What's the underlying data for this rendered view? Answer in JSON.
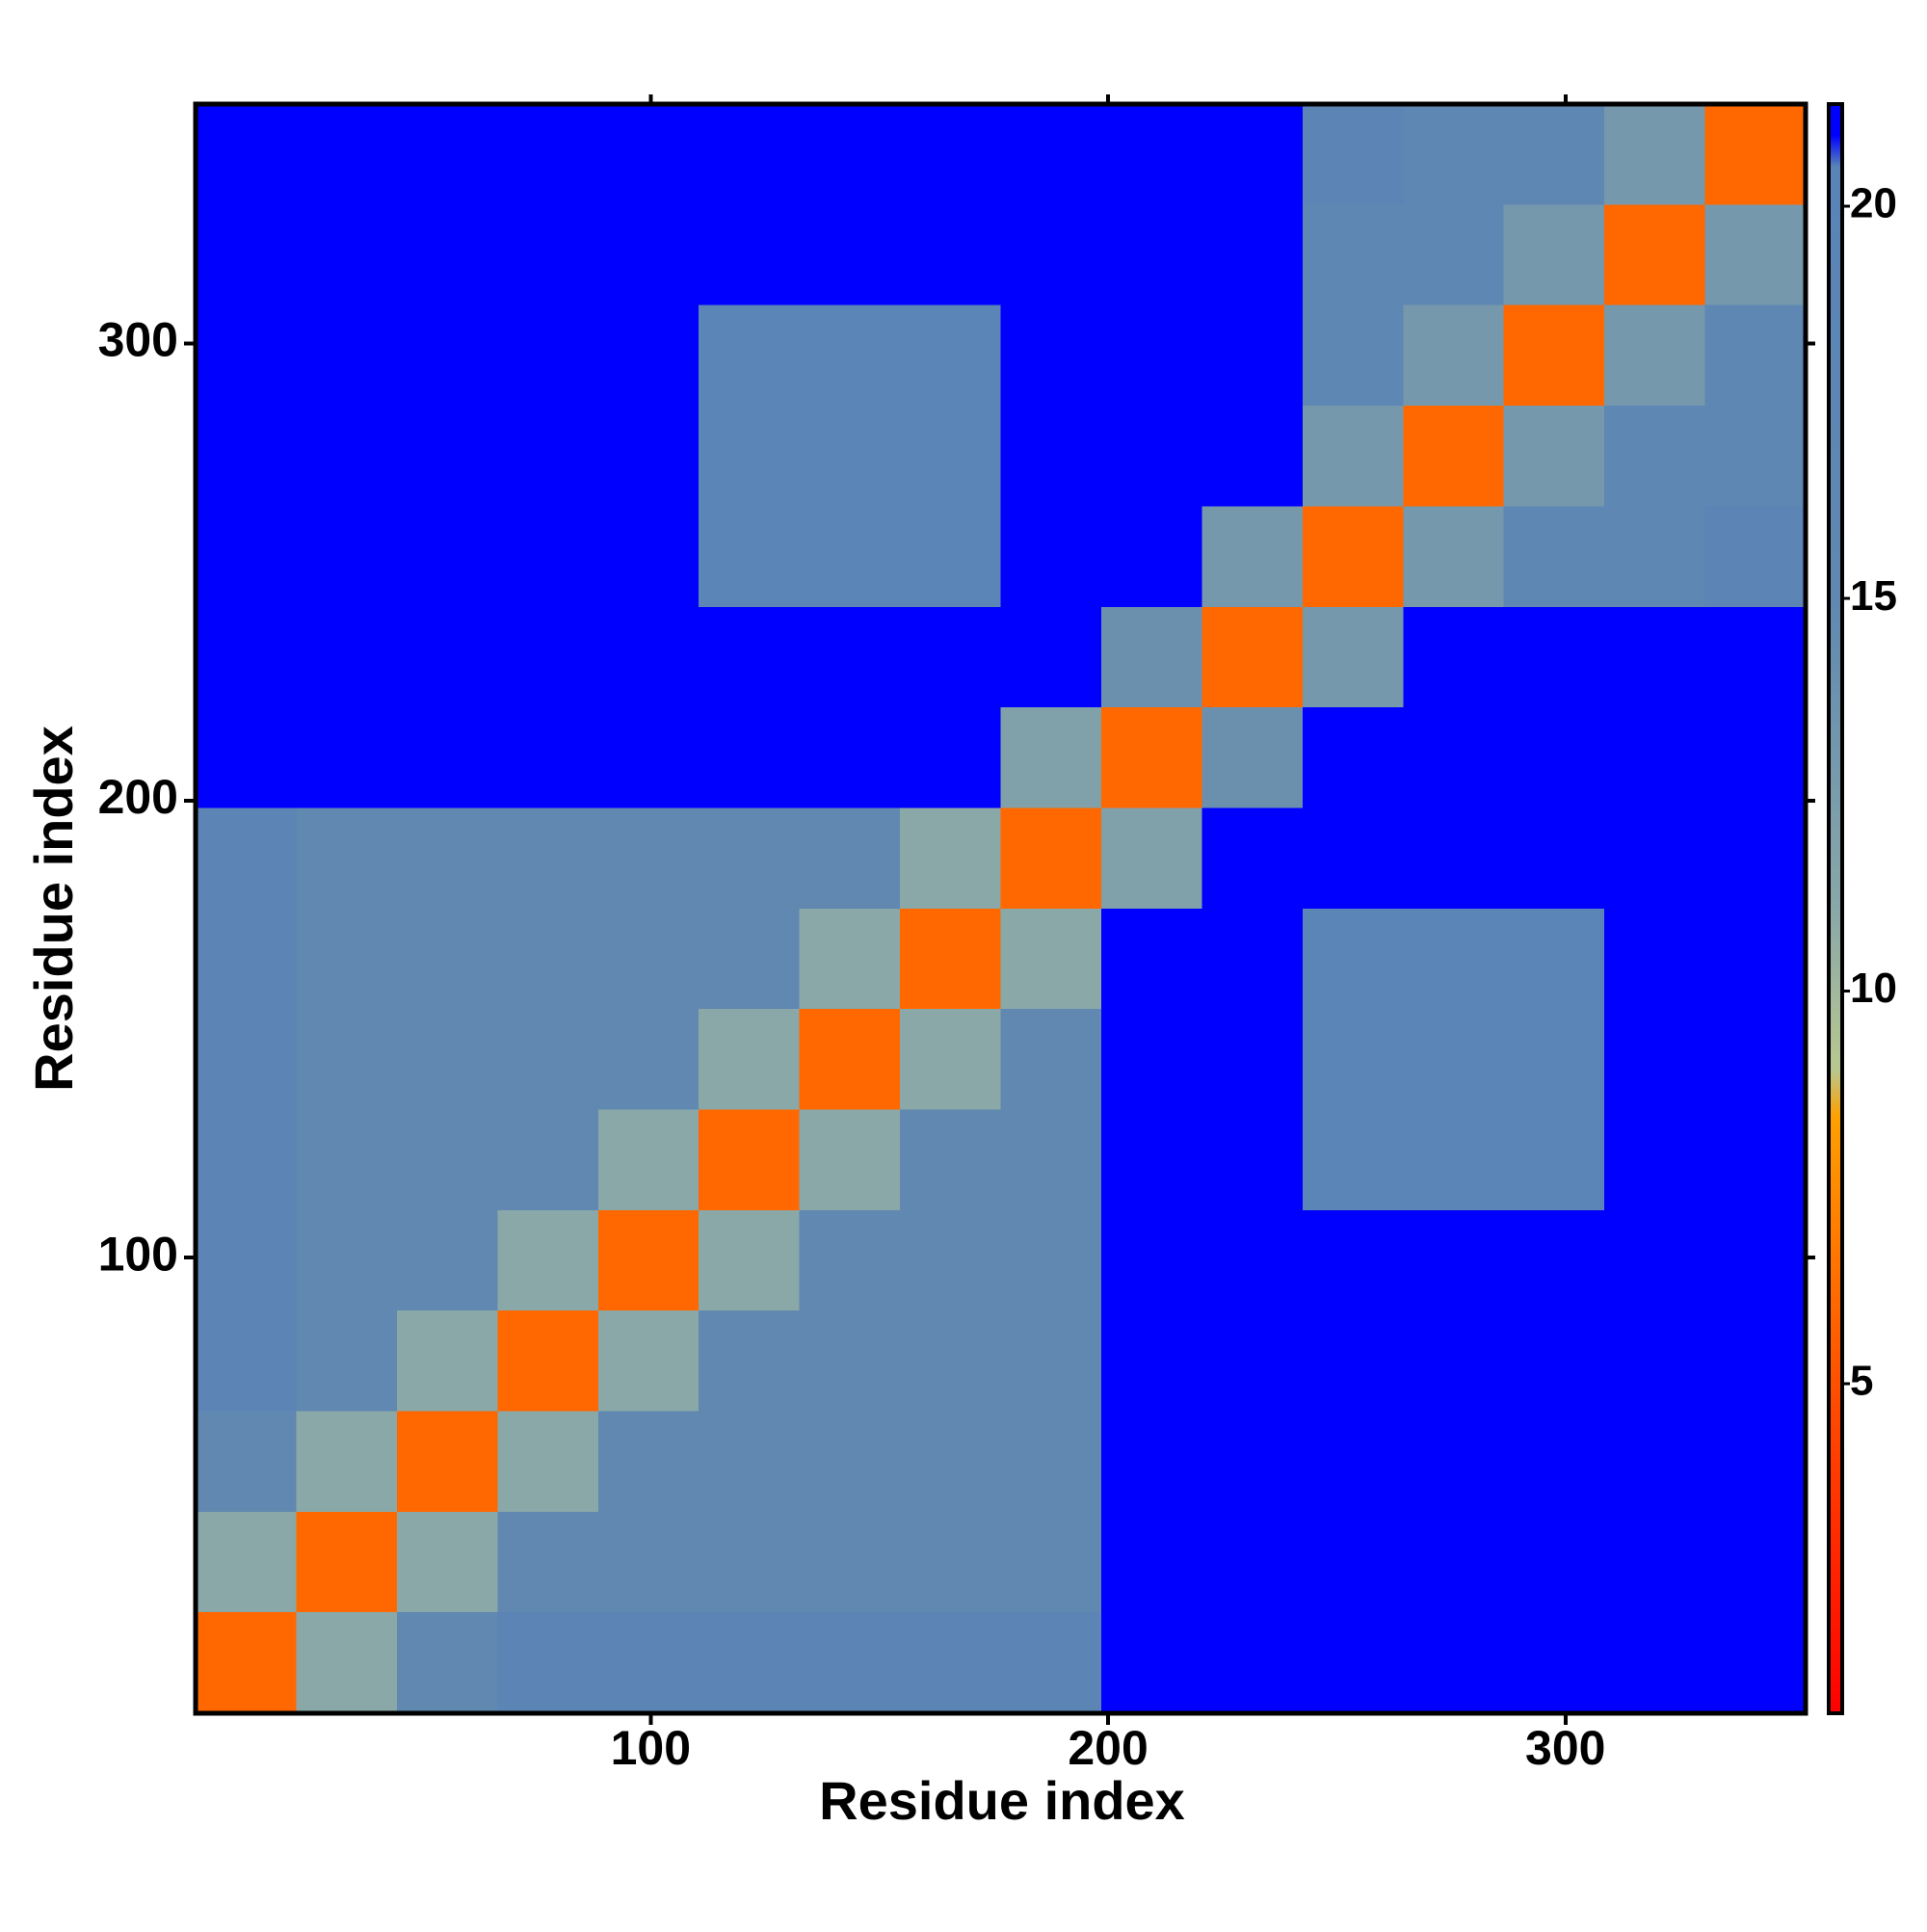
{
  "chart_data": {
    "type": "heatmap",
    "x_label": "Residue index",
    "y_label": "Residue index",
    "xbins": [
      0.5,
      22.5,
      44.5,
      66.5,
      88.5,
      110.5,
      132.5,
      154.5,
      176.5,
      198.5,
      220.5,
      242.5,
      264.5,
      286.5,
      308.5,
      330.5,
      352.5
    ],
    "ybins": [
      0.5,
      22.5,
      44.5,
      66.5,
      88.5,
      110.5,
      132.5,
      154.5,
      176.5,
      198.5,
      220.5,
      242.5,
      264.5,
      286.5,
      308.5,
      330.5,
      352.5
    ],
    "z": [
      [
        6,
        11,
        15,
        19,
        19,
        19,
        19,
        19,
        19,
        21,
        21,
        21,
        21,
        21,
        21,
        21
      ],
      [
        11,
        6,
        11,
        15,
        15,
        15,
        15,
        15,
        15,
        21,
        21,
        21,
        21,
        21,
        21,
        21
      ],
      [
        15,
        11,
        6,
        11,
        15,
        15,
        15,
        15,
        15,
        21,
        21,
        21,
        21,
        21,
        21,
        21
      ],
      [
        19,
        15,
        11,
        6,
        11,
        15,
        15,
        15,
        15,
        21,
        21,
        21,
        21,
        21,
        21,
        21
      ],
      [
        19,
        15,
        15,
        11,
        6,
        11,
        15,
        15,
        15,
        21,
        21,
        21,
        21,
        21,
        21,
        21
      ],
      [
        19,
        15,
        15,
        15,
        11,
        6,
        11,
        15,
        15,
        21,
        21,
        20,
        20,
        20,
        21,
        21
      ],
      [
        19,
        15,
        15,
        15,
        15,
        11,
        6,
        11,
        15,
        21,
        21,
        20,
        20,
        20,
        21,
        21
      ],
      [
        19,
        15,
        15,
        15,
        15,
        15,
        11,
        6,
        11,
        21,
        21,
        20,
        20,
        20,
        21,
        21
      ],
      [
        19,
        15,
        15,
        15,
        15,
        15,
        15,
        11,
        6,
        12,
        21,
        21,
        21,
        21,
        21,
        21
      ],
      [
        21,
        21,
        21,
        21,
        21,
        21,
        21,
        21,
        12,
        6,
        14,
        21,
        21,
        21,
        21,
        21
      ],
      [
        21,
        21,
        21,
        21,
        21,
        21,
        21,
        21,
        21,
        14,
        6,
        13,
        21,
        21,
        21,
        21
      ],
      [
        21,
        21,
        21,
        21,
        21,
        20,
        20,
        20,
        21,
        21,
        13,
        6,
        13,
        17,
        17,
        19
      ],
      [
        21,
        21,
        21,
        21,
        21,
        20,
        20,
        20,
        21,
        21,
        21,
        13,
        6,
        13,
        17,
        17
      ],
      [
        21,
        21,
        21,
        21,
        21,
        20,
        20,
        20,
        21,
        21,
        21,
        17,
        13,
        6,
        13,
        17
      ],
      [
        21,
        21,
        21,
        21,
        21,
        21,
        21,
        21,
        21,
        21,
        21,
        17,
        17,
        13,
        6,
        13
      ],
      [
        21,
        21,
        21,
        21,
        21,
        21,
        21,
        21,
        21,
        21,
        21,
        19,
        17,
        17,
        13,
        6
      ]
    ],
    "xlim": [
      0.5,
      352.5
    ],
    "ylim": [
      0.3,
      352.4
    ],
    "xticks": [
      100,
      200,
      300
    ],
    "yticks": [
      100,
      200,
      300
    ],
    "colorbar": {
      "lim": [
        0.8,
        21.3
      ],
      "ticks": [
        5,
        10,
        15,
        20
      ],
      "colorscale": [
        [
          0.8,
          "#ff0000"
        ],
        [
          5,
          "#ff5000"
        ],
        [
          8.4,
          "#ffa000"
        ],
        [
          9,
          "#b8c890"
        ],
        [
          11,
          "#8aa8a8"
        ],
        [
          15,
          "#6088b0"
        ],
        [
          20.5,
          "#5a84b8"
        ],
        [
          20.9,
          "#0000ff"
        ]
      ]
    }
  }
}
